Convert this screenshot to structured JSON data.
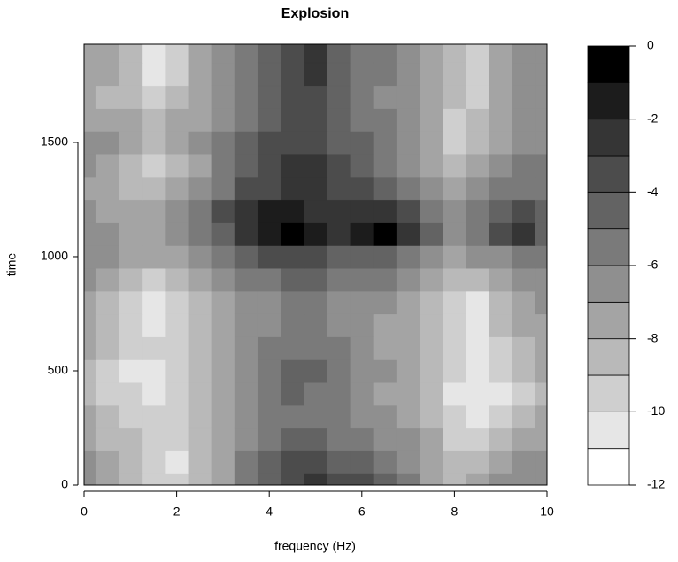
{
  "chart_data": {
    "type": "filled-contour",
    "title": "Explosion",
    "xlabel": "frequency (Hz)",
    "ylabel": "time",
    "xlim": [
      0,
      10
    ],
    "ylim": [
      0,
      1930
    ],
    "xticks": [
      0,
      2,
      4,
      6,
      8,
      10
    ],
    "yticks": [
      0,
      500,
      1000,
      1500
    ],
    "x": [
      0,
      0.5,
      1,
      1.5,
      2,
      2.5,
      3,
      3.5,
      4,
      4.5,
      5,
      5.5,
      6,
      6.5,
      7,
      7.5,
      8,
      8.5,
      9,
      9.5,
      10
    ],
    "y": [
      0,
      100,
      200,
      300,
      400,
      500,
      600,
      700,
      800,
      900,
      1000,
      1100,
      1200,
      1300,
      1400,
      1500,
      1600,
      1700,
      1800,
      1900
    ],
    "z": [
      [
        -7,
        -8,
        -9,
        -10,
        -10,
        -9,
        -8,
        -6,
        -5,
        -4,
        -3,
        -4,
        -4,
        -5,
        -6,
        -8,
        -9,
        -8,
        -7,
        -7,
        -7
      ],
      [
        -7,
        -8,
        -9,
        -10,
        -11,
        -9,
        -8,
        -6,
        -5,
        -4,
        -4,
        -5,
        -5,
        -6,
        -7,
        -8,
        -9,
        -9,
        -8,
        -7,
        -7
      ],
      [
        -8,
        -9,
        -9,
        -10,
        -10,
        -9,
        -8,
        -7,
        -6,
        -5,
        -5,
        -6,
        -6,
        -7,
        -7,
        -8,
        -10,
        -10,
        -9,
        -8,
        -8
      ],
      [
        -8,
        -9,
        -10,
        -10,
        -10,
        -9,
        -8,
        -7,
        -6,
        -6,
        -6,
        -6,
        -7,
        -7,
        -8,
        -9,
        -10,
        -11,
        -10,
        -9,
        -8
      ],
      [
        -9,
        -10,
        -10,
        -11,
        -10,
        -9,
        -8,
        -7,
        -6,
        -5,
        -6,
        -6,
        -7,
        -8,
        -8,
        -9,
        -11,
        -11,
        -11,
        -10,
        -9
      ],
      [
        -9,
        -10,
        -11,
        -11,
        -10,
        -9,
        -8,
        -7,
        -6,
        -5,
        -5,
        -6,
        -7,
        -7,
        -8,
        -9,
        -10,
        -11,
        -10,
        -9,
        -8
      ],
      [
        -8,
        -9,
        -10,
        -10,
        -10,
        -9,
        -8,
        -7,
        -6,
        -6,
        -6,
        -6,
        -7,
        -8,
        -8,
        -9,
        -10,
        -11,
        -10,
        -9,
        -8
      ],
      [
        -8,
        -9,
        -10,
        -11,
        -10,
        -9,
        -8,
        -7,
        -7,
        -6,
        -6,
        -7,
        -7,
        -8,
        -8,
        -9,
        -10,
        -11,
        -9,
        -8,
        -8
      ],
      [
        -8,
        -9,
        -10,
        -11,
        -10,
        -9,
        -8,
        -7,
        -7,
        -6,
        -6,
        -7,
        -7,
        -7,
        -8,
        -9,
        -10,
        -11,
        -9,
        -8,
        -7
      ],
      [
        -7,
        -8,
        -9,
        -10,
        -9,
        -8,
        -7,
        -6,
        -6,
        -5,
        -5,
        -6,
        -6,
        -6,
        -7,
        -8,
        -9,
        -9,
        -8,
        -7,
        -7
      ],
      [
        -7,
        -7,
        -8,
        -8,
        -8,
        -7,
        -6,
        -5,
        -4,
        -4,
        -4,
        -5,
        -5,
        -5,
        -6,
        -7,
        -8,
        -7,
        -7,
        -6,
        -6
      ],
      [
        -7,
        -7,
        -8,
        -8,
        -7,
        -6,
        -5,
        -3,
        -2,
        -1,
        -2,
        -3,
        -2,
        -1,
        -3,
        -5,
        -7,
        -6,
        -4,
        -3,
        -5
      ],
      [
        -7,
        -8,
        -8,
        -8,
        -7,
        -6,
        -4,
        -3,
        -2,
        -2,
        -3,
        -3,
        -3,
        -3,
        -4,
        -6,
        -7,
        -6,
        -5,
        -4,
        -5
      ],
      [
        -8,
        -8,
        -9,
        -9,
        -8,
        -7,
        -6,
        -4,
        -4,
        -3,
        -3,
        -4,
        -4,
        -5,
        -6,
        -7,
        -8,
        -7,
        -6,
        -6,
        -6
      ],
      [
        -7,
        -8,
        -9,
        -10,
        -9,
        -8,
        -6,
        -5,
        -4,
        -3,
        -3,
        -4,
        -5,
        -6,
        -7,
        -8,
        -9,
        -8,
        -7,
        -6,
        -6
      ],
      [
        -7,
        -7,
        -8,
        -9,
        -8,
        -7,
        -6,
        -5,
        -4,
        -4,
        -4,
        -5,
        -5,
        -6,
        -7,
        -8,
        -10,
        -9,
        -8,
        -7,
        -7
      ],
      [
        -8,
        -8,
        -8,
        -9,
        -8,
        -8,
        -7,
        -6,
        -5,
        -4,
        -4,
        -5,
        -6,
        -6,
        -7,
        -8,
        -10,
        -9,
        -8,
        -7,
        -7
      ],
      [
        -8,
        -9,
        -9,
        -10,
        -9,
        -8,
        -7,
        -6,
        -5,
        -4,
        -4,
        -5,
        -6,
        -7,
        -7,
        -8,
        -9,
        -10,
        -8,
        -7,
        -7
      ],
      [
        -8,
        -8,
        -9,
        -11,
        -10,
        -8,
        -7,
        -6,
        -5,
        -4,
        -3,
        -5,
        -6,
        -6,
        -7,
        -8,
        -9,
        -10,
        -8,
        -7,
        -7
      ],
      [
        -8,
        -8,
        -9,
        -11,
        -10,
        -8,
        -7,
        -6,
        -5,
        -4,
        -3,
        -5,
        -6,
        -6,
        -7,
        -8,
        -9,
        -10,
        -8,
        -7,
        -7
      ]
    ],
    "levels": [
      -12,
      -11,
      -10,
      -9,
      -8,
      -7,
      -6,
      -5,
      -4,
      -3,
      -2,
      -1,
      0
    ],
    "colors": [
      "#ffffff",
      "#e6e6e6",
      "#cfcfcf",
      "#b9b9b9",
      "#a4a4a4",
      "#8f8f8f",
      "#7a7a7a",
      "#636363",
      "#4c4c4c",
      "#353535",
      "#1c1c1c",
      "#000000"
    ],
    "zticks": [
      -12,
      -10,
      -8,
      -6,
      -4,
      -2,
      0
    ]
  }
}
